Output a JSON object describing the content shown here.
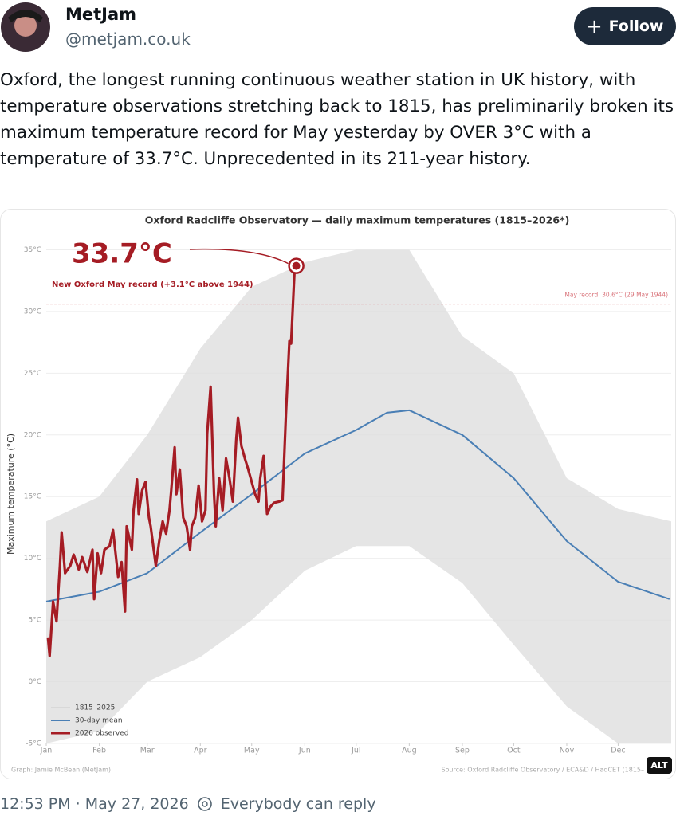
{
  "post": {
    "author": "MetJam",
    "handle": "@metjam.co.uk",
    "follow": "Follow",
    "text": "Oxford, the longest running continuous weather station in UK history, with temperature observations stretching back to 1815, has preliminarily broken its maximum temperature record for May yesterday by OVER 3°C with a temperature of 33.7°C. Unprecedented in its 211-year history.",
    "alt": "ALT",
    "time": "12:53 PM · May 27, 2026",
    "reply": "Everybody can reply"
  },
  "chart_data": {
    "type": "line",
    "title": "Oxford Radcliffe Observatory — daily maximum temperatures (1815–2026*)",
    "y_label": "Maximum temperature (°C)",
    "credit": "Graph: Jamie McBean (MetJam)",
    "source": "Source: Oxford Radcliffe Observatory / ECA&D / HadCET (1815–",
    "xlim": [
      1,
      366
    ],
    "ylim": [
      -5,
      36
    ],
    "xticks": [
      {
        "value": 1,
        "label": "Jan"
      },
      {
        "value": 32,
        "label": "Feb"
      },
      {
        "value": 60,
        "label": "Mar"
      },
      {
        "value": 91,
        "label": "Apr"
      },
      {
        "value": 121,
        "label": "May"
      },
      {
        "value": 152,
        "label": "Jun"
      },
      {
        "value": 182,
        "label": "Jul"
      },
      {
        "value": 213,
        "label": "Aug"
      },
      {
        "value": 244,
        "label": "Sep"
      },
      {
        "value": 274,
        "label": "Oct"
      },
      {
        "value": 305,
        "label": "Nov"
      },
      {
        "value": 335,
        "label": "Dec"
      }
    ],
    "yticks": [
      {
        "value": -5,
        "label": "-5°C"
      },
      {
        "value": 0,
        "label": "0°C"
      },
      {
        "value": 5,
        "label": "5°C"
      },
      {
        "value": 10,
        "label": "10°C"
      },
      {
        "value": 15,
        "label": "15°C"
      },
      {
        "value": 20,
        "label": "20°C"
      },
      {
        "value": 25,
        "label": "25°C"
      },
      {
        "value": 30,
        "label": "30°C"
      },
      {
        "value": 35,
        "label": "35°C"
      }
    ],
    "grid": true,
    "record_line": {
      "value": 30.6,
      "label": "May record: 30.6°C (29 May 1944)",
      "color": "#d9737a"
    },
    "annotations": {
      "value_text": "33.7°C",
      "note": "New Oxford May record (+3.1°C above 1944)",
      "color": "#a51c24"
    },
    "series": [
      {
        "name": "1815–2025",
        "color": "#dcdcdc",
        "x": [
          1,
          32,
          60,
          91,
          121,
          152,
          182,
          213,
          244,
          274,
          305,
          335,
          366
        ],
        "high": [
          13,
          15,
          20,
          27,
          32,
          34,
          35,
          35,
          28,
          25,
          16.5,
          14,
          13
        ],
        "low": [
          -5,
          -4,
          0,
          2,
          5,
          9,
          11,
          11,
          8,
          3,
          -2,
          -5,
          -5
        ]
      },
      {
        "name": "30-day mean",
        "color": "#4a7fb5",
        "x": [
          1,
          32,
          60,
          91,
          121,
          152,
          182,
          200,
          213,
          244,
          274,
          305,
          335,
          365
        ],
        "values": [
          6.5,
          7.3,
          8.8,
          12.1,
          15.2,
          18.5,
          20.4,
          21.8,
          22.0,
          20.0,
          16.5,
          11.4,
          8.1,
          6.7
        ]
      },
      {
        "name": "2026 observed",
        "color": "#a51c24",
        "x": [
          2,
          3,
          5,
          7,
          9,
          10,
          12,
          15,
          17,
          20,
          22,
          25,
          28,
          29,
          31,
          33,
          35,
          38,
          40,
          43,
          45,
          47,
          48,
          51,
          52,
          54,
          55,
          57,
          59,
          61,
          62,
          65,
          67,
          69,
          71,
          73,
          74,
          76,
          77,
          79,
          81,
          83,
          85,
          86,
          88,
          90,
          92,
          94,
          95,
          97,
          99,
          100,
          102,
          104,
          106,
          108,
          110,
          112,
          113,
          115,
          117,
          119,
          121,
          123,
          125,
          126,
          128,
          130,
          132,
          134,
          137,
          139,
          141,
          143,
          144,
          146,
          147
        ],
        "values": [
          3.6,
          2.1,
          6.5,
          4.9,
          9.4,
          12.1,
          8.8,
          9.4,
          10.3,
          9.1,
          10.1,
          8.9,
          10.7,
          6.7,
          10.4,
          8.8,
          10.7,
          11,
          12.3,
          8.5,
          9.7,
          5.7,
          12.6,
          10.7,
          13.9,
          16.4,
          13.6,
          15.5,
          16.2,
          13.3,
          12.6,
          9.4,
          11.4,
          13,
          12,
          13.9,
          15.5,
          19,
          15.2,
          17.2,
          13.3,
          12.6,
          10.7,
          12.6,
          13.3,
          15.9,
          13,
          13.9,
          20.1,
          23.9,
          15.2,
          12.6,
          16.5,
          13.9,
          18.1,
          16.5,
          14.6,
          19.7,
          21.4,
          19.1,
          18.1,
          17.2,
          16.2,
          15.2,
          14.6,
          16.5,
          18.3,
          13.6,
          14.2,
          14.5,
          14.6,
          14.7,
          21.7,
          27.6,
          27.4,
          33.3,
          33.7
        ]
      }
    ]
  }
}
